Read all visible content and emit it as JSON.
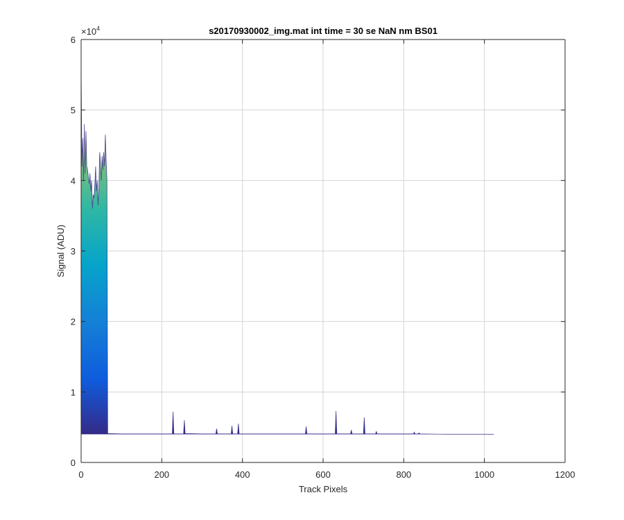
{
  "chart_data": {
    "type": "area",
    "title": "s20170930002_img.mat int time = 30 se  NaN nm BS01",
    "xlabel": "Track Pixels",
    "ylabel": "Signal (ADU)",
    "xlim": [
      0,
      1200
    ],
    "ylim": [
      0,
      60000
    ],
    "xticks": [
      0,
      200,
      400,
      600,
      800,
      1000,
      1200
    ],
    "yticks": [
      0,
      1,
      2,
      3,
      4,
      5,
      6
    ],
    "y_exponent_label": "×10",
    "y_exponent": "4",
    "grid": true,
    "colormap": "parula",
    "baseline": 4000,
    "series": [
      {
        "x": [
          0,
          2,
          4,
          6,
          8,
          10,
          12,
          14,
          16,
          18,
          20,
          22,
          24,
          26,
          28,
          30,
          32,
          34,
          36,
          38,
          40,
          42,
          44,
          46,
          48,
          50,
          52,
          54,
          56,
          58,
          60,
          62,
          64,
          66,
          100,
          200,
          226,
          228,
          230,
          232,
          254,
          256,
          258,
          300,
          334,
          336,
          338,
          372,
          374,
          376,
          388,
          390,
          392,
          400,
          500,
          556,
          558,
          560,
          600,
          630,
          632,
          634,
          636,
          668,
          670,
          672,
          700,
          702,
          704,
          730,
          732,
          734,
          800,
          824,
          826,
          828,
          836,
          838,
          840,
          900,
          1000,
          1023
        ],
        "y": [
          56000,
          42000,
          46000,
          40000,
          48000,
          41000,
          47000,
          42000,
          41500,
          40500,
          39500,
          41000,
          38500,
          40000,
          36000,
          38000,
          37500,
          39500,
          42000,
          38500,
          40000,
          36500,
          39000,
          44000,
          42500,
          40000,
          43500,
          41500,
          44000,
          42000,
          46500,
          43000,
          40000,
          4100,
          4050,
          4050,
          4050,
          7200,
          4100,
          4050,
          4050,
          6000,
          4100,
          4050,
          4050,
          4800,
          4050,
          4050,
          5200,
          4050,
          4050,
          5500,
          4050,
          4050,
          4050,
          4050,
          5100,
          4050,
          4050,
          4050,
          7300,
          4100,
          4050,
          4050,
          4600,
          4050,
          4050,
          6400,
          4050,
          4050,
          4400,
          4050,
          4050,
          4050,
          4300,
          4050,
          4050,
          4200,
          4050,
          4000,
          4000,
          4000
        ]
      }
    ]
  }
}
